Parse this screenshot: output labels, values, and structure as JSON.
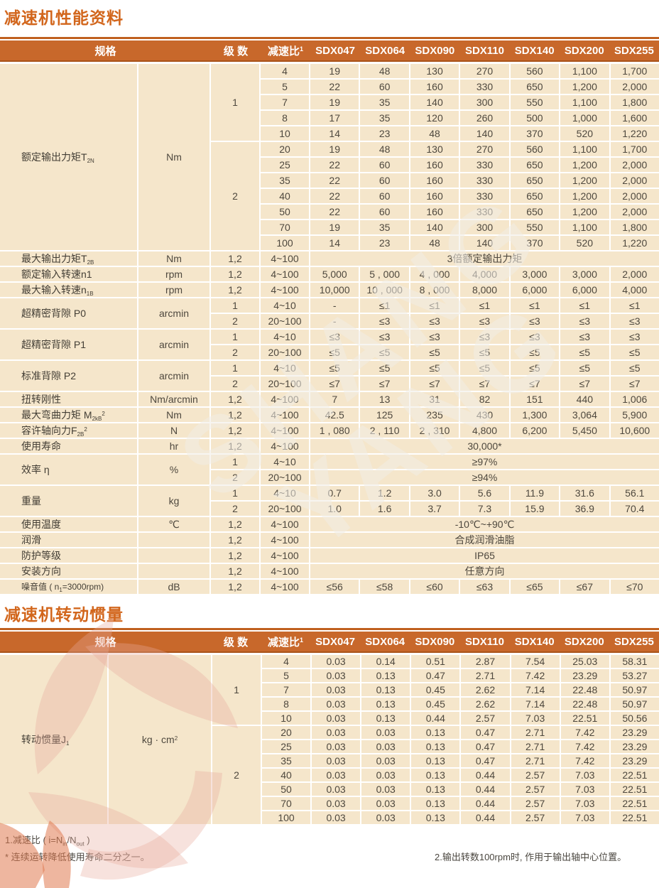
{
  "accent": {
    "title_orange": "#D2661C",
    "header_orange": "#C8682B",
    "header_border": "#A9531A",
    "cell_cream": "#F4E4C7",
    "text_dark": "#4E483E",
    "watermark_pink": "#E9A99C"
  },
  "watermark": {
    "line1": "SHANG",
    "line2": "YANG"
  },
  "perf": {
    "title": "减速机性能资料",
    "header": {
      "spec": "规格",
      "stages": "级 数",
      "ratio": [
        {
          "v": "减速比"
        },
        {
          "t": "sup",
          "v": "1"
        }
      ],
      "models": [
        "SDX047",
        "SDX064",
        "SDX090",
        "SDX110",
        "SDX140",
        "SDX200",
        "SDX255"
      ]
    },
    "groups": [
      {
        "label": [
          {
            "v": "额定输出力矩T"
          },
          {
            "t": "sub",
            "v": "2N"
          }
        ],
        "unit": "Nm",
        "blocks": [
          {
            "stage": "1",
            "rows": [
              {
                "ratio": "4",
                "values": [
                  "19",
                  "48",
                  "130",
                  "270",
                  "560",
                  "1,100",
                  "1,700"
                ]
              },
              {
                "ratio": "5",
                "values": [
                  "22",
                  "60",
                  "160",
                  "330",
                  "650",
                  "1,200",
                  "2,000"
                ]
              },
              {
                "ratio": "7",
                "values": [
                  "19",
                  "35",
                  "140",
                  "300",
                  "550",
                  "1,100",
                  "1,800"
                ]
              },
              {
                "ratio": "8",
                "values": [
                  "17",
                  "35",
                  "120",
                  "260",
                  "500",
                  "1,000",
                  "1,600"
                ]
              },
              {
                "ratio": "10",
                "values": [
                  "14",
                  "23",
                  "48",
                  "140",
                  "370",
                  "520",
                  "1,220"
                ]
              }
            ]
          },
          {
            "stage": "2",
            "rows": [
              {
                "ratio": "20",
                "values": [
                  "19",
                  "48",
                  "130",
                  "270",
                  "560",
                  "1,100",
                  "1,700"
                ]
              },
              {
                "ratio": "25",
                "values": [
                  "22",
                  "60",
                  "160",
                  "330",
                  "650",
                  "1,200",
                  "2,000"
                ]
              },
              {
                "ratio": "35",
                "values": [
                  "22",
                  "60",
                  "160",
                  "330",
                  "650",
                  "1,200",
                  "2,000"
                ]
              },
              {
                "ratio": "40",
                "values": [
                  "22",
                  "60",
                  "160",
                  "330",
                  "650",
                  "1,200",
                  "2,000"
                ]
              },
              {
                "ratio": "50",
                "values": [
                  "22",
                  "60",
                  "160",
                  "330",
                  "650",
                  "1,200",
                  "2,000"
                ]
              },
              {
                "ratio": "70",
                "values": [
                  "19",
                  "35",
                  "140",
                  "300",
                  "550",
                  "1,100",
                  "1,800"
                ]
              },
              {
                "ratio": "100",
                "values": [
                  "14",
                  "23",
                  "48",
                  "140",
                  "370",
                  "520",
                  "1,220"
                ]
              }
            ]
          }
        ]
      },
      {
        "label": [
          {
            "v": "最大输出力矩T"
          },
          {
            "t": "sub",
            "v": "2B"
          }
        ],
        "unit": "Nm",
        "blocks": [
          {
            "stage": "1,2",
            "rows": [
              {
                "ratio": "4~100",
                "span": "3倍额定输出力矩"
              }
            ]
          }
        ]
      },
      {
        "label": "额定输入转速n1",
        "unit": "rpm",
        "blocks": [
          {
            "stage": "1,2",
            "rows": [
              {
                "ratio": "4~100",
                "values": [
                  "5,000",
                  "5 , 000",
                  "4 , 000",
                  "4,000",
                  "3,000",
                  "3,000",
                  "2,000"
                ]
              }
            ]
          }
        ]
      },
      {
        "label": [
          {
            "v": "最大输入转速n"
          },
          {
            "t": "sub",
            "v": "1B"
          }
        ],
        "unit": "rpm",
        "blocks": [
          {
            "stage": "1,2",
            "rows": [
              {
                "ratio": "4~100",
                "values": [
                  "10,000",
                  "10 , 000",
                  "8 , 000",
                  "8,000",
                  "6,000",
                  "6,000",
                  "4,000"
                ]
              }
            ]
          }
        ]
      },
      {
        "label": "超精密背隙  P0",
        "unit": "arcmin",
        "blocks": [
          {
            "stage": "1",
            "rows": [
              {
                "ratio": "4~10",
                "values": [
                  "-",
                  "≤1",
                  "≤1",
                  "≤1",
                  "≤1",
                  "≤1",
                  "≤1"
                ]
              }
            ]
          },
          {
            "stage": "2",
            "rows": [
              {
                "ratio": "20~100",
                "values": [
                  "-",
                  "≤3",
                  "≤3",
                  "≤3",
                  "≤3",
                  "≤3",
                  "≤3"
                ]
              }
            ]
          }
        ]
      },
      {
        "label": "超精密背隙  P1",
        "unit": "arcmin",
        "blocks": [
          {
            "stage": "1",
            "rows": [
              {
                "ratio": "4~10",
                "values": [
                  "≤3",
                  "≤3",
                  "≤3",
                  "≤3",
                  "≤3",
                  "≤3",
                  "≤3"
                ]
              }
            ]
          },
          {
            "stage": "2",
            "rows": [
              {
                "ratio": "20~100",
                "values": [
                  "≤5",
                  "≤5",
                  "≤5",
                  "≤5",
                  "≤5",
                  "≤5",
                  "≤5"
                ]
              }
            ]
          }
        ]
      },
      {
        "label": "标准背隙  P2",
        "unit": "arcmin",
        "blocks": [
          {
            "stage": "1",
            "rows": [
              {
                "ratio": "4~10",
                "values": [
                  "≤5",
                  "≤5",
                  "≤5",
                  "≤5",
                  "≤5",
                  "≤5",
                  "≤5"
                ]
              }
            ]
          },
          {
            "stage": "2",
            "rows": [
              {
                "ratio": "20~100",
                "values": [
                  "≤7",
                  "≤7",
                  "≤7",
                  "≤7",
                  "≤7",
                  "≤7",
                  "≤7"
                ]
              }
            ]
          }
        ]
      },
      {
        "label": "扭转刚性",
        "unit": "Nm/arcmin",
        "blocks": [
          {
            "stage": "1,2",
            "rows": [
              {
                "ratio": "4~100",
                "values": [
                  "7",
                  "13",
                  "31",
                  "82",
                  "151",
                  "440",
                  "1,006"
                ]
              }
            ]
          }
        ]
      },
      {
        "label": [
          {
            "v": "最大弯曲力矩 M"
          },
          {
            "t": "sub",
            "v": "2kB"
          },
          {
            "t": "sup",
            "v": "2"
          }
        ],
        "unit": "Nm",
        "blocks": [
          {
            "stage": "1,2",
            "rows": [
              {
                "ratio": "4~100",
                "values": [
                  "42.5",
                  "125",
                  "235",
                  "430",
                  "1,300",
                  "3,064",
                  "5,900"
                ]
              }
            ]
          }
        ]
      },
      {
        "label": [
          {
            "v": "容许轴向力F"
          },
          {
            "t": "sub",
            "v": "2B"
          },
          {
            "t": "sup",
            "v": "2"
          }
        ],
        "unit": "N",
        "blocks": [
          {
            "stage": "1,2",
            "rows": [
              {
                "ratio": "4~100",
                "values": [
                  "1 , 080",
                  "2 , 110",
                  "2 , 310",
                  "4,800",
                  "6,200",
                  "5,450",
                  "10,600"
                ]
              }
            ]
          }
        ]
      },
      {
        "label": "使用寿命",
        "unit": "hr",
        "blocks": [
          {
            "stage": "1,2",
            "rows": [
              {
                "ratio": "4~100",
                "span": "30,000*"
              }
            ]
          }
        ]
      },
      {
        "label": "效率 η",
        "unit": "%",
        "blocks": [
          {
            "stage": "1",
            "rows": [
              {
                "ratio": "4~10",
                "span": "≥97%"
              }
            ]
          },
          {
            "stage": "2",
            "rows": [
              {
                "ratio": "20~100",
                "span": "≥94%"
              }
            ]
          }
        ]
      },
      {
        "label": "重量",
        "unit": "kg",
        "blocks": [
          {
            "stage": "1",
            "rows": [
              {
                "ratio": "4~10",
                "values": [
                  "0.7",
                  "1.2",
                  "3.0",
                  "5.6",
                  "11.9",
                  "31.6",
                  "56.1"
                ]
              }
            ]
          },
          {
            "stage": "2",
            "rows": [
              {
                "ratio": "20~100",
                "values": [
                  "1.0",
                  "1.6",
                  "3.7",
                  "7.3",
                  "15.9",
                  "36.9",
                  "70.4"
                ]
              }
            ]
          }
        ]
      },
      {
        "label": "使用温度",
        "unit": "℃",
        "blocks": [
          {
            "stage": "1,2",
            "rows": [
              {
                "ratio": "4~100",
                "span": "-10℃~+90℃"
              }
            ]
          }
        ]
      },
      {
        "label": "润滑",
        "unit": "",
        "blocks": [
          {
            "stage": "1,2",
            "rows": [
              {
                "ratio": "4~100",
                "span": "合成润滑油脂"
              }
            ]
          }
        ]
      },
      {
        "label": "防护等级",
        "unit": "",
        "blocks": [
          {
            "stage": "1,2",
            "rows": [
              {
                "ratio": "4~100",
                "span": "IP65"
              }
            ]
          }
        ]
      },
      {
        "label": "安装方向",
        "unit": "",
        "blocks": [
          {
            "stage": "1,2",
            "rows": [
              {
                "ratio": "4~100",
                "span": "任意方向"
              }
            ]
          }
        ]
      },
      {
        "label": [
          {
            "v": "噪音值 ( n"
          },
          {
            "t": "sub",
            "v": "1"
          },
          {
            "v": "=3000rpm)"
          }
        ],
        "small": true,
        "unit": "dB",
        "blocks": [
          {
            "stage": "1,2",
            "rows": [
              {
                "ratio": "4~100",
                "values": [
                  "≤56",
                  "≤58",
                  "≤60",
                  "≤63",
                  "≤65",
                  "≤67",
                  "≤70"
                ]
              }
            ]
          }
        ]
      }
    ]
  },
  "inertia": {
    "title": "减速机转动惯量",
    "header": {
      "spec": "规格",
      "stages": "级 数",
      "ratio": [
        {
          "v": "减速比"
        },
        {
          "t": "sup",
          "v": "1"
        }
      ],
      "models": [
        "SDX047",
        "SDX064",
        "SDX090",
        "SDX110",
        "SDX140",
        "SDX200",
        "SDX255"
      ]
    },
    "groups": [
      {
        "label": [
          {
            "v": "转动惯量J"
          },
          {
            "t": "sub",
            "v": "1"
          }
        ],
        "unit": [
          {
            "v": "kg · cm"
          },
          {
            "t": "sup",
            "v": "2"
          }
        ],
        "blocks": [
          {
            "stage": "1",
            "rows": [
              {
                "ratio": "4",
                "values": [
                  "0.03",
                  "0.14",
                  "0.51",
                  "2.87",
                  "7.54",
                  "25.03",
                  "58.31"
                ]
              },
              {
                "ratio": "5",
                "values": [
                  "0.03",
                  "0.13",
                  "0.47",
                  "2.71",
                  "7.42",
                  "23.29",
                  "53.27"
                ]
              },
              {
                "ratio": "7",
                "values": [
                  "0.03",
                  "0.13",
                  "0.45",
                  "2.62",
                  "7.14",
                  "22.48",
                  "50.97"
                ]
              },
              {
                "ratio": "8",
                "values": [
                  "0.03",
                  "0.13",
                  "0.45",
                  "2.62",
                  "7.14",
                  "22.48",
                  "50.97"
                ]
              },
              {
                "ratio": "10",
                "values": [
                  "0.03",
                  "0.13",
                  "0.44",
                  "2.57",
                  "7.03",
                  "22.51",
                  "50.56"
                ]
              }
            ]
          },
          {
            "stage": "2",
            "rows": [
              {
                "ratio": "20",
                "values": [
                  "0.03",
                  "0.03",
                  "0.13",
                  "0.47",
                  "2.71",
                  "7.42",
                  "23.29"
                ]
              },
              {
                "ratio": "25",
                "values": [
                  "0.03",
                  "0.03",
                  "0.13",
                  "0.47",
                  "2.71",
                  "7.42",
                  "23.29"
                ]
              },
              {
                "ratio": "35",
                "values": [
                  "0.03",
                  "0.03",
                  "0.13",
                  "0.47",
                  "2.71",
                  "7.42",
                  "23.29"
                ]
              },
              {
                "ratio": "40",
                "values": [
                  "0.03",
                  "0.03",
                  "0.13",
                  "0.44",
                  "2.57",
                  "7.03",
                  "22.51"
                ]
              },
              {
                "ratio": "50",
                "values": [
                  "0.03",
                  "0.03",
                  "0.13",
                  "0.44",
                  "2.57",
                  "7.03",
                  "22.51"
                ]
              },
              {
                "ratio": "70",
                "values": [
                  "0.03",
                  "0.03",
                  "0.13",
                  "0.44",
                  "2.57",
                  "7.03",
                  "22.51"
                ]
              },
              {
                "ratio": "100",
                "values": [
                  "0.03",
                  "0.03",
                  "0.13",
                  "0.44",
                  "2.57",
                  "7.03",
                  "22.51"
                ]
              }
            ]
          }
        ]
      }
    ]
  },
  "footnotes": {
    "f1": [
      {
        "v": "1.减速比 ( i=N"
      },
      {
        "t": "sub",
        "v": "in"
      },
      {
        "v": "/N"
      },
      {
        "t": "sub",
        "v": "out"
      },
      {
        "v": " )"
      }
    ],
    "f2": "* 连续运转降低使用寿命二分之一。",
    "f3": "2.输出转数100rpm时, 作用于输出轴中心位置。"
  }
}
